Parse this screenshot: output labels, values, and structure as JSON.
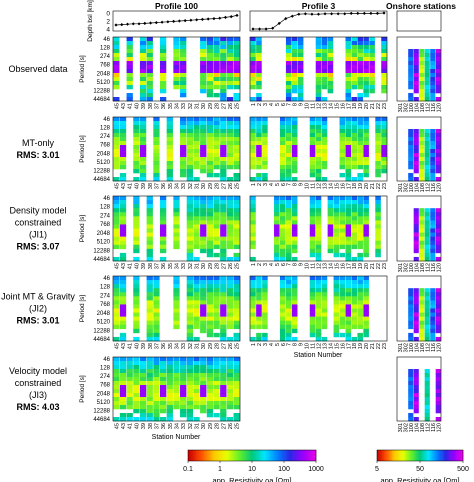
{
  "chart_data": {
    "type": "heatmap",
    "column_titles": [
      "Profile 100",
      "Profile 3",
      "Onshore stations"
    ],
    "depth_axis": {
      "label": "Depth bsl [km]",
      "ticks": [
        0,
        2,
        4
      ],
      "range": [
        4,
        0
      ]
    },
    "bathymetry": {
      "profile_100": [
        3.0,
        2.9,
        2.8,
        2.7,
        2.7,
        2.6,
        2.5,
        2.4,
        2.3,
        2.2,
        2.1,
        2.0,
        1.9,
        1.8,
        1.7,
        1.6,
        1.5,
        1.4,
        1.3,
        1.1,
        0.9,
        0.6
      ],
      "profile_3": [
        4.0,
        4.0,
        4.0,
        3.8,
        2.6,
        1.4,
        0.8,
        0.3,
        0.2,
        0.3,
        0.3,
        0.2,
        0.2,
        0.2,
        0.2,
        0.1,
        0.1,
        0.1,
        0.1,
        0.1,
        0.0
      ]
    },
    "period_axis": {
      "label": "Period [s]",
      "ticks": [
        46,
        128,
        274,
        768,
        2048,
        5120,
        12288,
        44684
      ]
    },
    "stations": {
      "profile_100": [
        "45",
        "43",
        "41",
        "40",
        "39",
        "38",
        "37",
        "36",
        "35",
        "34",
        "33",
        "32",
        "31",
        "30",
        "29",
        "28",
        "27",
        "26",
        "25"
      ],
      "profile_3": [
        "1",
        "2",
        "3",
        "4",
        "5",
        "6",
        "7",
        "8",
        "9",
        "10",
        "11",
        "12",
        "13",
        "14",
        "15",
        "16",
        "17",
        "18",
        "19",
        "20",
        "21",
        "22",
        "23"
      ],
      "onshore": [
        "301",
        "302",
        "100",
        "104",
        "108",
        "112",
        "116",
        "120"
      ]
    },
    "xlabel": "Station Number",
    "rows": [
      {
        "label": "Observed data",
        "rms": ""
      },
      {
        "label": "MT-only",
        "rms": "RMS: 3.01"
      },
      {
        "label": "Density model constrained (JI1)",
        "rms": "RMS: 3.07"
      },
      {
        "label": "Joint MT & Gravity (JI2)",
        "rms": "RMS: 3.01"
      },
      {
        "label": "Velocity model constrained (JI3)",
        "rms": "RMS: 4.03"
      }
    ],
    "colorbars": [
      {
        "label": "app. Resistivity ρa [Ωm]",
        "ticks": [
          "0.1",
          "1",
          "10",
          "100",
          "1000"
        ],
        "scale": "log",
        "range": [
          0.1,
          1000
        ]
      },
      {
        "label": "app. Resistivity ρa [Ωm]",
        "ticks": [
          "5",
          "50",
          "500"
        ],
        "scale": "log",
        "range": [
          5,
          500
        ]
      }
    ]
  }
}
